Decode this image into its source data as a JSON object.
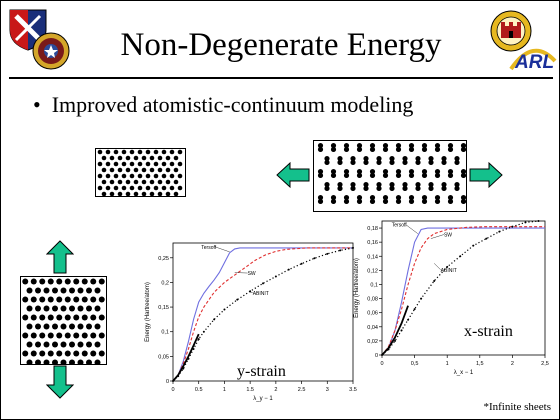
{
  "slide": {
    "title": "Non-Degenerate Energy",
    "bullet": "Improved atomistic-continuum modeling",
    "footnote": "*Infinite sheets",
    "logos": [
      "army-shield-logo",
      "army-research-crest-logo",
      "corps-castle-emblem-logo",
      "arl-logo"
    ],
    "logo_text": "ARL"
  },
  "chart_data": [
    {
      "type": "line",
      "panel_label": "y-strain",
      "xlabel": "λ_y − 1",
      "ylabel": "Energy (Hartree/atom)",
      "xlim": [
        0,
        3.5
      ],
      "ylim": [
        0,
        0.28
      ],
      "xticks": [
        "0",
        "0.5",
        "1",
        "1.5",
        "2",
        "2.5",
        "3",
        "3.5"
      ],
      "yticks": [
        "0",
        "0,05",
        "0,1",
        "0,15",
        "0,2",
        "0,25"
      ],
      "annotations": [
        "Tersoff",
        "SW",
        "ABINIT"
      ],
      "series": [
        {
          "name": "Tersoff",
          "color": "#6f6fe0",
          "style": "solid",
          "x": [
            0,
            0.1,
            0.2,
            0.3,
            0.4,
            0.5,
            0.6,
            0.7,
            0.8,
            0.9,
            1.0,
            1.1,
            1.2,
            1.3,
            1.4,
            1.5,
            3.5
          ],
          "y": [
            0,
            0.012,
            0.04,
            0.08,
            0.125,
            0.16,
            0.178,
            0.192,
            0.205,
            0.22,
            0.24,
            0.26,
            0.268,
            0.27,
            0.27,
            0.27,
            0.27
          ]
        },
        {
          "name": "SW",
          "color": "#e03030",
          "style": "dashed",
          "x": [
            0,
            0.1,
            0.2,
            0.3,
            0.4,
            0.5,
            0.6,
            0.8,
            1.0,
            1.2,
            1.4,
            1.6,
            1.8,
            2.0,
            2.2,
            2.6,
            3.0,
            3.5
          ],
          "y": [
            0,
            0.012,
            0.035,
            0.065,
            0.1,
            0.13,
            0.15,
            0.18,
            0.2,
            0.215,
            0.23,
            0.245,
            0.256,
            0.263,
            0.267,
            0.27,
            0.27,
            0.27
          ]
        },
        {
          "name": "ABINIT",
          "color": "#000000",
          "style": "dotted",
          "x": [
            0,
            0.1,
            0.2,
            0.3,
            0.4,
            0.5,
            0.6,
            0.8,
            1.0,
            1.25,
            1.5,
            1.75,
            2.0,
            2.25,
            2.5,
            2.75,
            3.0,
            3.25,
            3.5
          ],
          "y": [
            0,
            0.01,
            0.025,
            0.045,
            0.065,
            0.085,
            0.1,
            0.125,
            0.145,
            0.165,
            0.182,
            0.198,
            0.212,
            0.226,
            0.238,
            0.249,
            0.258,
            0.265,
            0.27
          ]
        },
        {
          "name": "",
          "color": "#000000",
          "style": "solid",
          "x": [
            0,
            0.1,
            0.2,
            0.3,
            0.4,
            0.5
          ],
          "y": [
            0,
            0.012,
            0.03,
            0.05,
            0.072,
            0.095
          ]
        }
      ]
    },
    {
      "type": "line",
      "panel_label": "x-strain",
      "xlabel": "λ_x − 1",
      "ylabel": "Energy (Hartree/atom)",
      "xlim": [
        0,
        2.5
      ],
      "ylim": [
        0,
        0.19
      ],
      "xticks": [
        "0",
        "0,5",
        "1",
        "1,5",
        "2",
        "2,5"
      ],
      "yticks": [
        "0",
        "0,02",
        "0,04",
        "0,06",
        "0,08",
        "0,1",
        "0,12",
        "0,14",
        "0,16",
        "0,18"
      ],
      "annotations": [
        "Tersoff",
        "SW",
        "ABINIT"
      ],
      "series": [
        {
          "name": "Tersoff",
          "color": "#6f6fe0",
          "style": "solid",
          "x": [
            0,
            0.1,
            0.2,
            0.3,
            0.4,
            0.5,
            0.6,
            0.7,
            2.5
          ],
          "y": [
            0,
            0.01,
            0.035,
            0.075,
            0.12,
            0.16,
            0.178,
            0.18,
            0.18
          ]
        },
        {
          "name": "SW",
          "color": "#e03030",
          "style": "dashed",
          "x": [
            0,
            0.1,
            0.2,
            0.3,
            0.4,
            0.5,
            0.6,
            0.7,
            0.8,
            1.0,
            1.3,
            1.6,
            2.0,
            2.5
          ],
          "y": [
            0,
            0.012,
            0.035,
            0.065,
            0.1,
            0.13,
            0.152,
            0.165,
            0.172,
            0.178,
            0.181,
            0.182,
            0.182,
            0.182
          ]
        },
        {
          "name": "ABINIT",
          "color": "#000000",
          "style": "dotted",
          "x": [
            0,
            0.1,
            0.2,
            0.3,
            0.4,
            0.5,
            0.6,
            0.8,
            1.0,
            1.2,
            1.4,
            1.6,
            1.8,
            2.0,
            2.2,
            2.4
          ],
          "y": [
            0,
            0.008,
            0.02,
            0.035,
            0.05,
            0.065,
            0.08,
            0.105,
            0.125,
            0.14,
            0.155,
            0.165,
            0.175,
            0.182,
            0.188,
            0.19
          ]
        },
        {
          "name": "",
          "color": "#000000",
          "style": "solid",
          "x": [
            0,
            0.1,
            0.2,
            0.3,
            0.4
          ],
          "y": [
            0,
            0.01,
            0.025,
            0.045,
            0.07
          ]
        }
      ]
    }
  ]
}
